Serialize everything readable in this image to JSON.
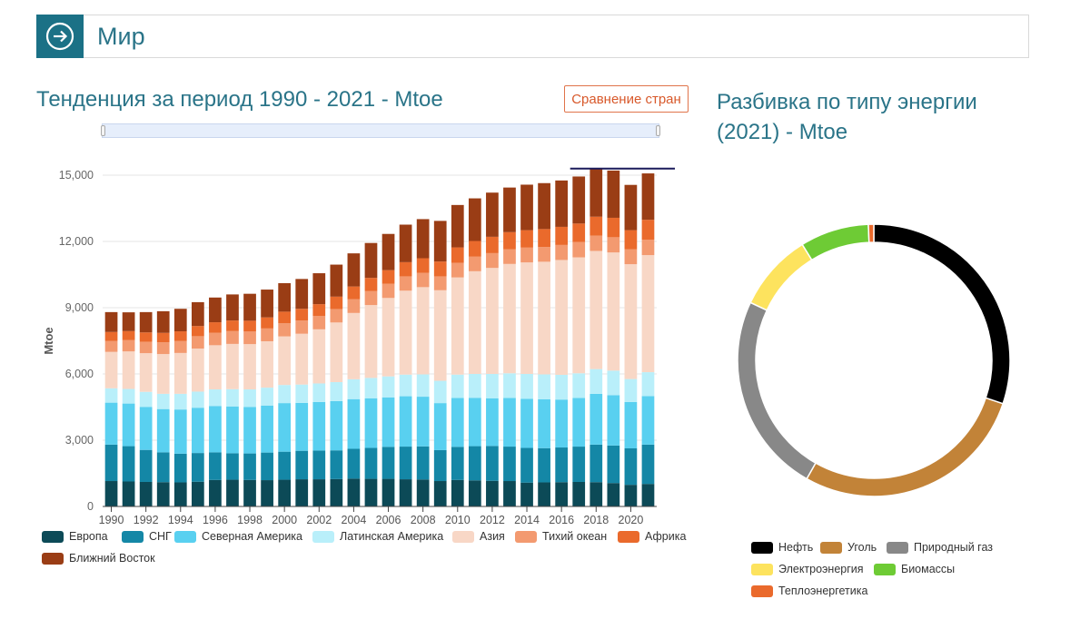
{
  "header": {
    "title": "Мир",
    "nav_icon": "arrow-right-circle-icon"
  },
  "trend": {
    "title": "Тенденция за период 1990 - 2021 - Mtoe",
    "compare_button": "Сравнение стран"
  },
  "breakdown": {
    "title": "Разбивка по типу энергии (2021) - Mtoe"
  },
  "chart_data": [
    {
      "type": "bar",
      "stacked": true,
      "ylabel": "Mtoe",
      "ylim": [
        0,
        15000
      ],
      "yticks": [
        "0",
        "3,000",
        "6,000",
        "9,000",
        "12,000",
        "15,000"
      ],
      "ytick_values": [
        0,
        3000,
        6000,
        9000,
        12000,
        15000
      ],
      "xtick_labels": [
        "1990",
        "1992",
        "1994",
        "1996",
        "1998",
        "2000",
        "2002",
        "2004",
        "2006",
        "2008",
        "2010",
        "2012",
        "2014",
        "2016",
        "2018",
        "2020"
      ],
      "categories": [
        "1990",
        "1991",
        "1992",
        "1993",
        "1994",
        "1995",
        "1996",
        "1997",
        "1998",
        "1999",
        "2000",
        "2001",
        "2002",
        "2003",
        "2004",
        "2005",
        "2006",
        "2007",
        "2008",
        "2009",
        "2010",
        "2011",
        "2012",
        "2013",
        "2014",
        "2015",
        "2016",
        "2017",
        "2018",
        "2019",
        "2020",
        "2021"
      ],
      "grid": true,
      "legend_position": "bottom",
      "series": [
        {
          "name": "Европа",
          "color": "#0c4a57",
          "values": [
            1150,
            1130,
            1110,
            1100,
            1090,
            1120,
            1200,
            1210,
            1200,
            1190,
            1210,
            1230,
            1230,
            1240,
            1260,
            1250,
            1250,
            1230,
            1220,
            1150,
            1200,
            1180,
            1160,
            1150,
            1080,
            1090,
            1100,
            1110,
            1100,
            1060,
            980,
            1020
          ]
        },
        {
          "name": "СНГ",
          "color": "#1487a6",
          "values": [
            1650,
            1600,
            1450,
            1350,
            1300,
            1300,
            1250,
            1200,
            1200,
            1250,
            1270,
            1290,
            1300,
            1300,
            1350,
            1400,
            1450,
            1480,
            1500,
            1400,
            1500,
            1550,
            1580,
            1560,
            1570,
            1550,
            1570,
            1600,
            1700,
            1700,
            1650,
            1780
          ]
        },
        {
          "name": "Северная Америка",
          "color": "#59d0f0",
          "values": [
            1900,
            1930,
            1950,
            1960,
            2000,
            2050,
            2100,
            2120,
            2100,
            2130,
            2200,
            2170,
            2200,
            2230,
            2250,
            2250,
            2240,
            2280,
            2250,
            2130,
            2210,
            2190,
            2160,
            2200,
            2220,
            2210,
            2170,
            2200,
            2300,
            2280,
            2100,
            2200
          ]
        },
        {
          "name": "Латинская Америка",
          "color": "#b9effa",
          "values": [
            650,
            660,
            680,
            690,
            710,
            730,
            750,
            780,
            800,
            810,
            820,
            830,
            840,
            860,
            900,
            920,
            950,
            980,
            1010,
            1010,
            1060,
            1080,
            1100,
            1120,
            1130,
            1130,
            1120,
            1120,
            1120,
            1110,
            1040,
            1080
          ]
        },
        {
          "name": "Азия",
          "color": "#f8d7c6",
          "values": [
            1650,
            1700,
            1750,
            1800,
            1850,
            1950,
            2000,
            2050,
            2050,
            2100,
            2200,
            2300,
            2450,
            2700,
            3000,
            3300,
            3550,
            3800,
            3950,
            4100,
            4400,
            4650,
            4800,
            4950,
            5050,
            5100,
            5200,
            5250,
            5350,
            5350,
            5200,
            5300
          ]
        },
        {
          "name": "Тихий океан",
          "color": "#f39a70",
          "values": [
            500,
            510,
            520,
            530,
            540,
            560,
            570,
            580,
            570,
            580,
            600,
            600,
            600,
            610,
            620,
            630,
            640,
            650,
            650,
            630,
            660,
            660,
            670,
            670,
            670,
            670,
            680,
            690,
            690,
            690,
            680,
            700
          ]
        },
        {
          "name": "Африка",
          "color": "#ea6a2c",
          "values": [
            400,
            410,
            420,
            430,
            440,
            460,
            470,
            480,
            490,
            500,
            520,
            530,
            540,
            560,
            580,
            600,
            620,
            640,
            660,
            670,
            700,
            710,
            740,
            770,
            790,
            810,
            820,
            840,
            860,
            880,
            860,
            900
          ]
        },
        {
          "name": "Ближний Восток",
          "color": "#9a3d15",
          "values": [
            900,
            850,
            920,
            980,
            1020,
            1080,
            1120,
            1180,
            1220,
            1260,
            1290,
            1350,
            1400,
            1450,
            1500,
            1580,
            1640,
            1700,
            1770,
            1840,
            1920,
            1930,
            2000,
            2020,
            2060,
            2080,
            2100,
            2130,
            2180,
            2140,
            2050,
            2100
          ]
        }
      ],
      "annotation": "line-at-max"
    },
    {
      "type": "pie",
      "donut": true,
      "series": [
        {
          "name": "Нефть",
          "color": "#000000",
          "value": 4250
        },
        {
          "name": "Уголь",
          "color": "#c28338",
          "value": 3950
        },
        {
          "name": "Природный газ",
          "color": "#888888",
          "value": 3350
        },
        {
          "name": "Электроэнергия",
          "color": "#fde35e",
          "value": 1300
        },
        {
          "name": "Биомассы",
          "color": "#6ecb35",
          "value": 1150
        },
        {
          "name": "Теплоэнергетика",
          "color": "#ea6a2c",
          "value": 90
        }
      ],
      "legend_position": "bottom"
    }
  ]
}
